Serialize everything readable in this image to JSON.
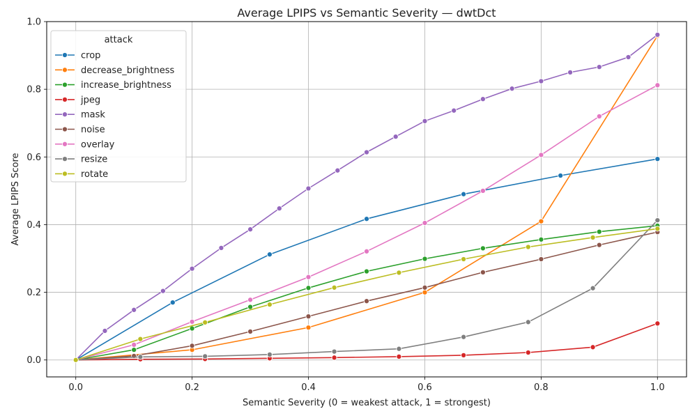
{
  "chart_data": {
    "type": "line",
    "title": "Average LPIPS vs Semantic Severity — dwtDct",
    "xlabel": "Semantic Severity (0 = weakest attack, 1 = strongest)",
    "ylabel": "Average LPIPS Score",
    "xlim": [
      -0.05,
      1.05
    ],
    "ylim": [
      -0.05,
      1.0
    ],
    "xticks": [
      0.0,
      0.2,
      0.4,
      0.6,
      0.8,
      1.0
    ],
    "yticks": [
      0.0,
      0.2,
      0.4,
      0.6,
      0.8,
      1.0
    ],
    "xtick_labels": [
      "0.0",
      "0.2",
      "0.4",
      "0.6",
      "0.8",
      "1.0"
    ],
    "ytick_labels": [
      "0.0",
      "0.2",
      "0.4",
      "0.6",
      "0.8",
      "1.0"
    ],
    "grid": true,
    "legend": {
      "title": "attack",
      "placement": "top-left"
    },
    "series": [
      {
        "name": "crop",
        "color": "#1f77b4",
        "x": [
          0.0,
          0.1667,
          0.3333,
          0.5,
          0.6667,
          0.8333,
          1.0
        ],
        "y": [
          0.0,
          0.17,
          0.312,
          0.417,
          0.49,
          0.545,
          0.594
        ]
      },
      {
        "name": "decrease_brightness",
        "color": "#ff7f0e",
        "x": [
          0.0,
          0.2,
          0.4,
          0.6,
          0.8,
          1.0
        ],
        "y": [
          0.0,
          0.03,
          0.096,
          0.2,
          0.41,
          0.958
        ]
      },
      {
        "name": "increase_brightness",
        "color": "#2ca02c",
        "x": [
          0.0,
          0.1,
          0.2,
          0.3,
          0.4,
          0.5,
          0.6,
          0.7,
          0.8,
          0.9,
          1.0
        ],
        "y": [
          0.0,
          0.03,
          0.093,
          0.157,
          0.213,
          0.262,
          0.299,
          0.33,
          0.356,
          0.379,
          0.397
        ]
      },
      {
        "name": "jpeg",
        "color": "#d62728",
        "x": [
          0.0,
          0.1111,
          0.2222,
          0.3333,
          0.4444,
          0.5556,
          0.6667,
          0.7778,
          0.8889,
          1.0
        ],
        "y": [
          0.0,
          0.002,
          0.003,
          0.005,
          0.007,
          0.01,
          0.014,
          0.022,
          0.038,
          0.108
        ]
      },
      {
        "name": "mask",
        "color": "#9467bd",
        "x": [
          0.0,
          0.05,
          0.1,
          0.15,
          0.2,
          0.25,
          0.3,
          0.35,
          0.4,
          0.45,
          0.5,
          0.55,
          0.6,
          0.65,
          0.7,
          0.75,
          0.8,
          0.85,
          0.9,
          0.95,
          1.0
        ],
        "y": [
          0.0,
          0.086,
          0.148,
          0.204,
          0.27,
          0.331,
          0.386,
          0.448,
          0.507,
          0.56,
          0.614,
          0.66,
          0.706,
          0.737,
          0.771,
          0.802,
          0.824,
          0.85,
          0.866,
          0.895,
          0.961
        ]
      },
      {
        "name": "noise",
        "color": "#8c564b",
        "x": [
          0.0,
          0.1,
          0.2,
          0.3,
          0.4,
          0.5,
          0.6,
          0.7,
          0.8,
          0.9,
          1.0
        ],
        "y": [
          0.0,
          0.012,
          0.042,
          0.084,
          0.129,
          0.174,
          0.214,
          0.259,
          0.298,
          0.34,
          0.378
        ]
      },
      {
        "name": "overlay",
        "color": "#e377c2",
        "x": [
          0.0,
          0.1,
          0.2,
          0.3,
          0.4,
          0.5,
          0.6,
          0.7,
          0.8,
          0.9,
          1.0
        ],
        "y": [
          0.0,
          0.045,
          0.113,
          0.178,
          0.245,
          0.321,
          0.405,
          0.5,
          0.606,
          0.72,
          0.812
        ]
      },
      {
        "name": "resize",
        "color": "#7f7f7f",
        "x": [
          0.0,
          0.1111,
          0.2222,
          0.3333,
          0.4444,
          0.5556,
          0.6667,
          0.7778,
          0.8889,
          1.0
        ],
        "y": [
          0.0,
          0.009,
          0.011,
          0.016,
          0.025,
          0.033,
          0.068,
          0.112,
          0.212,
          0.413
        ]
      },
      {
        "name": "rotate",
        "color": "#bcbd22",
        "x": [
          0.0,
          0.1111,
          0.2222,
          0.3333,
          0.4444,
          0.5556,
          0.6667,
          0.7778,
          0.8889,
          1.0
        ],
        "y": [
          0.0,
          0.062,
          0.111,
          0.164,
          0.214,
          0.258,
          0.298,
          0.334,
          0.362,
          0.388
        ]
      }
    ]
  }
}
